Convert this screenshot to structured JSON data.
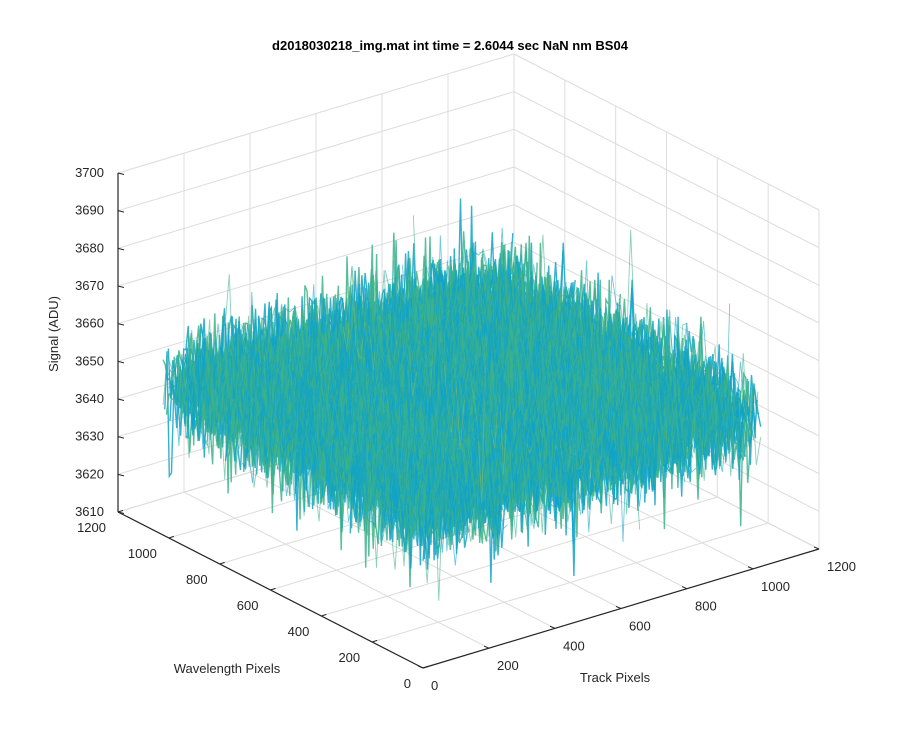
{
  "chart_data": {
    "type": "surface",
    "title": "d2018030218_img.mat int time = 2.6044 sec  NaN nm BS04",
    "xlabel": "Track Pixels",
    "ylabel": "Wavelength Pixels",
    "zlabel": "Signal (ADU)",
    "x_ticks": [
      "0",
      "200",
      "400",
      "600",
      "800",
      "1000",
      "1200"
    ],
    "y_ticks": [
      "0",
      "200",
      "400",
      "600",
      "800",
      "1000",
      "1200"
    ],
    "z_ticks": [
      "3610",
      "3620",
      "3630",
      "3640",
      "3650",
      "3660",
      "3670",
      "3680",
      "3690",
      "3700"
    ],
    "xlim": [
      0,
      1200
    ],
    "ylim": [
      0,
      1200
    ],
    "zlim": [
      3610,
      3700
    ],
    "data_extent": {
      "x": [
        1,
        1024
      ],
      "y": [
        1,
        1024
      ]
    },
    "z_mean": 3650,
    "z_range": [
      3622,
      3690
    ],
    "grid": true,
    "box": true,
    "colormap": [
      "#0a72c9",
      "#12a3c8",
      "#3db38a",
      "#86bc5a",
      "#d8c23e"
    ]
  }
}
